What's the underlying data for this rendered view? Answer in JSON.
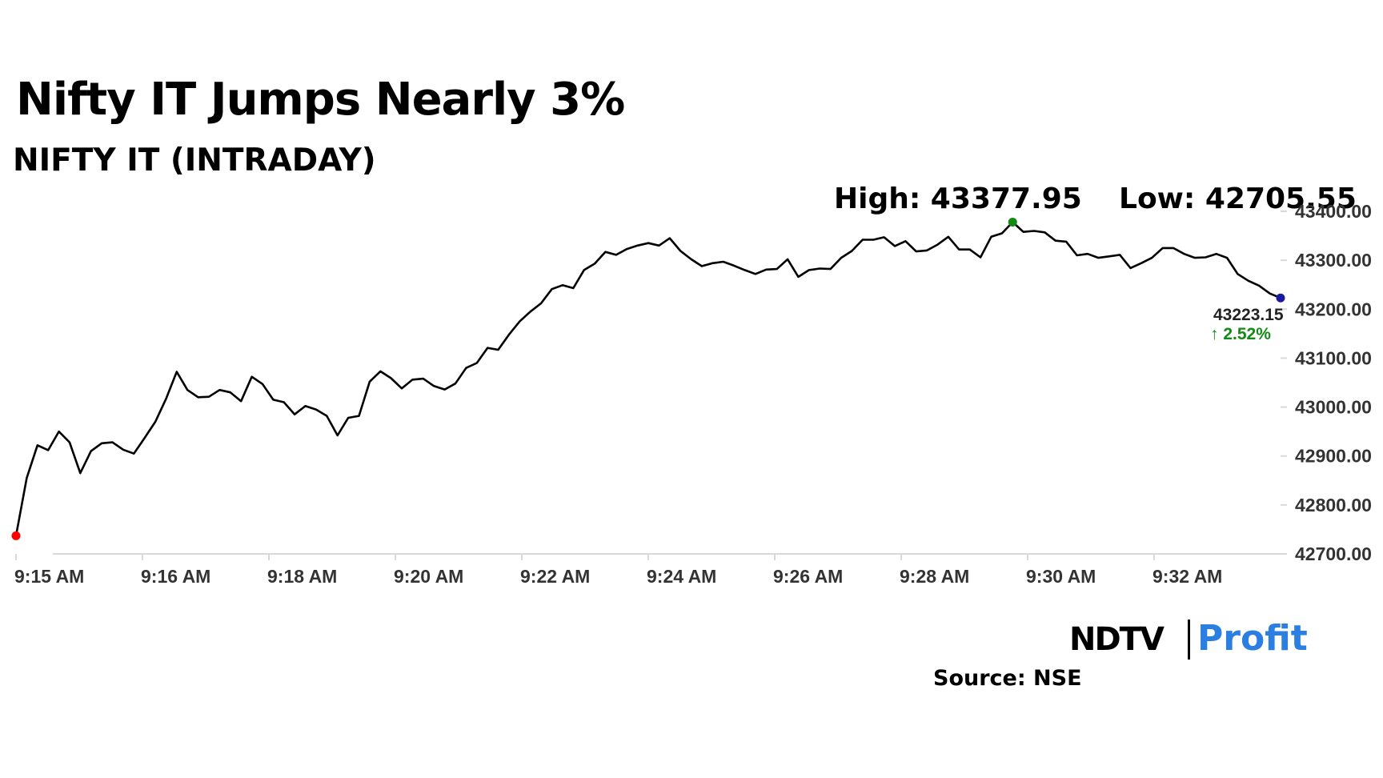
{
  "header": {
    "title": "Nifty IT Jumps Nearly 3%",
    "subtitle": "NIFTY IT (INTRADAY)",
    "high_label": "High: 43377.95",
    "low_label": "Low: 42705.55"
  },
  "branding": {
    "logo_ndtv": "NDTV",
    "logo_profit": "Profit",
    "source": "Source: NSE"
  },
  "last_value": {
    "value": "43223.15",
    "change": "↑ 2.52%"
  },
  "colors": {
    "line": "#000000",
    "start_marker": "#ff0000",
    "high_marker": "#138a13",
    "end_marker": "#1a1aa0",
    "change_positive": "#138a13",
    "axis": "#d9d9d9",
    "brand_blue": "#2b7fe0",
    "brand_pink": "#e8368f"
  },
  "chart_data": {
    "type": "line",
    "title": "Nifty IT Jumps Nearly 3%",
    "subtitle": "NIFTY IT (INTRADAY)",
    "xlabel": "",
    "ylabel": "",
    "x_ticks": [
      "9:15 AM",
      "9:16 AM",
      "9:18 AM",
      "9:20 AM",
      "9:22 AM",
      "9:24 AM",
      "9:26 AM",
      "9:28 AM",
      "9:30 AM",
      "9:32 AM"
    ],
    "y_ticks": [
      "42700.00",
      "42800.00",
      "42900.00",
      "43000.00",
      "43100.00",
      "43200.00",
      "43300.00",
      "43400.00"
    ],
    "ylim": [
      42700,
      43400
    ],
    "y_axis_position": "right",
    "grid": false,
    "series": [
      {
        "values": [
          42737,
          42855,
          42922,
          42912,
          42950,
          42928,
          42865,
          42910,
          42926,
          42928,
          42913,
          42905,
          42937,
          42970,
          43017,
          43072,
          43035,
          43020,
          43021,
          43035,
          43030,
          43012,
          43062,
          43047,
          43015,
          43010,
          42985,
          43002,
          42995,
          42982,
          42942,
          42978,
          42982,
          43052,
          43073,
          43059,
          43038,
          43056,
          43058,
          43043,
          43036,
          43048,
          43080,
          43090,
          43121,
          43117,
          43148,
          43175,
          43195,
          43212,
          43241,
          43249,
          43243,
          43280,
          43293,
          43317,
          43311,
          43323,
          43330,
          43335,
          43330,
          43345,
          43319,
          43302,
          43288,
          43294,
          43297,
          43289,
          43280,
          43272,
          43281,
          43282,
          43302,
          43266,
          43280,
          43283,
          43282,
          43305,
          43319,
          43342,
          43342,
          43347,
          43329,
          43339,
          43318,
          43320,
          43332,
          43348,
          43322,
          43322,
          43306,
          43348,
          43355,
          43378,
          43358,
          43360,
          43357,
          43340,
          43338,
          43310,
          43313,
          43305,
          43308,
          43311,
          43284,
          43294,
          43305,
          43325,
          43325,
          43313,
          43305,
          43306,
          43313,
          43305,
          43272,
          43258,
          43248,
          43232,
          43223
        ]
      }
    ],
    "annotations": {
      "high": 43377.95,
      "low": 42705.55,
      "last": 43223.15,
      "change_percent": 2.52
    }
  }
}
